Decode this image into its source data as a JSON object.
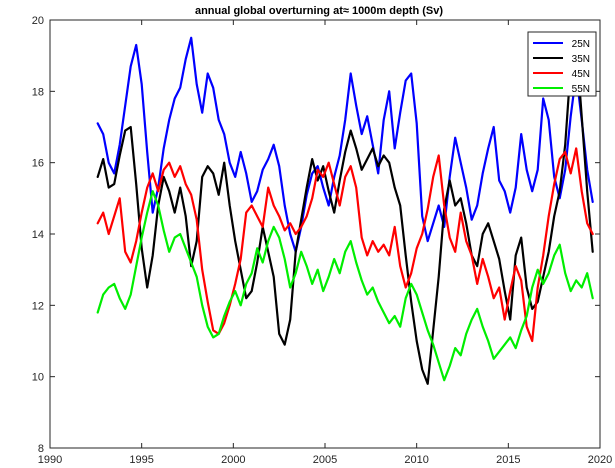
{
  "chart_data": {
    "type": "line",
    "title": "annual global overturning at≈ 1000m depth (Sv)",
    "xlabel": "",
    "ylabel": "",
    "xlim": [
      1990,
      2020
    ],
    "ylim": [
      8,
      20
    ],
    "xticks": [
      1990,
      1995,
      2000,
      2005,
      2010,
      2015,
      2020
    ],
    "yticks": [
      8,
      10,
      12,
      14,
      16,
      18,
      20
    ],
    "grid": false,
    "legend_position": "top-right",
    "series": [
      {
        "name": "25N",
        "color": "#0000ff",
        "x": [
          1992.6,
          1992.9,
          1993.2,
          1993.5,
          1993.8,
          1994.1,
          1994.4,
          1994.7,
          1995.0,
          1995.3,
          1995.6,
          1995.9,
          1996.2,
          1996.5,
          1996.8,
          1997.1,
          1997.4,
          1997.7,
          1998.0,
          1998.3,
          1998.6,
          1998.9,
          1999.2,
          1999.5,
          1999.8,
          2000.1,
          2000.4,
          2000.7,
          2001.0,
          2001.3,
          2001.6,
          2001.9,
          2002.2,
          2002.5,
          2002.8,
          2003.1,
          2003.4,
          2003.7,
          2004.0,
          2004.3,
          2004.6,
          2004.9,
          2005.2,
          2005.5,
          2005.8,
          2006.1,
          2006.4,
          2006.7,
          2007.0,
          2007.3,
          2007.6,
          2007.9,
          2008.2,
          2008.5,
          2008.8,
          2009.1,
          2009.4,
          2009.7,
          2010.0,
          2010.3,
          2010.6,
          2010.9,
          2011.2,
          2011.5,
          2011.8,
          2012.1,
          2012.4,
          2012.7,
          2013.0,
          2013.3,
          2013.6,
          2013.9,
          2014.2,
          2014.5,
          2014.8,
          2015.1,
          2015.4,
          2015.7,
          2016.0,
          2016.3,
          2016.6,
          2016.9,
          2017.2,
          2017.5,
          2017.8,
          2018.1,
          2018.4,
          2018.7,
          2019.0,
          2019.3,
          2019.6
        ],
        "y": [
          17.1,
          16.8,
          16.0,
          15.7,
          16.5,
          17.6,
          18.7,
          19.3,
          18.2,
          16.3,
          14.6,
          15.3,
          16.4,
          17.2,
          17.8,
          18.1,
          18.9,
          19.5,
          18.2,
          17.4,
          18.5,
          18.1,
          17.2,
          16.8,
          16.0,
          15.6,
          16.3,
          15.7,
          14.9,
          15.2,
          15.8,
          16.1,
          16.5,
          15.9,
          14.8,
          14.0,
          13.5,
          14.2,
          15.1,
          15.7,
          15.9,
          15.3,
          14.8,
          15.6,
          16.2,
          17.2,
          18.5,
          17.6,
          16.8,
          17.3,
          16.5,
          15.7,
          17.2,
          18.0,
          16.4,
          17.4,
          18.3,
          18.5,
          17.1,
          14.5,
          13.8,
          14.3,
          14.8,
          14.2,
          15.6,
          16.7,
          16.0,
          15.3,
          14.4,
          14.8,
          15.7,
          16.4,
          17.0,
          15.5,
          15.2,
          14.6,
          15.3,
          16.8,
          15.8,
          15.2,
          15.8,
          17.8,
          17.2,
          15.6,
          15.0,
          15.8,
          17.3,
          18.5,
          17.2,
          15.8,
          14.9
        ]
      },
      {
        "name": "35N",
        "color": "#000000",
        "x": [
          1992.6,
          1992.9,
          1993.2,
          1993.5,
          1993.8,
          1994.1,
          1994.4,
          1994.7,
          1995.0,
          1995.3,
          1995.6,
          1995.9,
          1996.2,
          1996.5,
          1996.8,
          1997.1,
          1997.4,
          1997.7,
          1998.0,
          1998.3,
          1998.6,
          1998.9,
          1999.2,
          1999.5,
          1999.8,
          2000.1,
          2000.4,
          2000.7,
          2001.0,
          2001.3,
          2001.6,
          2001.9,
          2002.2,
          2002.5,
          2002.8,
          2003.1,
          2003.4,
          2003.7,
          2004.0,
          2004.3,
          2004.6,
          2004.9,
          2005.2,
          2005.5,
          2005.8,
          2006.1,
          2006.4,
          2006.7,
          2007.0,
          2007.3,
          2007.6,
          2007.9,
          2008.2,
          2008.5,
          2008.8,
          2009.1,
          2009.4,
          2009.7,
          2010.0,
          2010.3,
          2010.6,
          2010.9,
          2011.2,
          2011.5,
          2011.8,
          2012.1,
          2012.4,
          2012.7,
          2013.0,
          2013.3,
          2013.6,
          2013.9,
          2014.2,
          2014.5,
          2014.8,
          2015.1,
          2015.4,
          2015.7,
          2016.0,
          2016.3,
          2016.6,
          2016.9,
          2017.2,
          2017.5,
          2017.8,
          2018.1,
          2018.4,
          2018.7,
          2019.0,
          2019.3,
          2019.6
        ],
        "y": [
          15.6,
          16.1,
          15.3,
          15.4,
          16.2,
          16.9,
          17.0,
          15.4,
          13.6,
          12.5,
          13.4,
          14.8,
          15.6,
          15.2,
          14.6,
          15.3,
          14.5,
          13.1,
          13.8,
          15.6,
          15.9,
          15.7,
          15.1,
          16.0,
          14.8,
          13.8,
          13.0,
          12.2,
          12.4,
          13.2,
          14.2,
          13.5,
          12.8,
          11.2,
          10.9,
          11.6,
          13.5,
          14.4,
          15.3,
          16.1,
          15.5,
          15.9,
          15.2,
          14.6,
          15.5,
          16.3,
          16.9,
          16.4,
          15.8,
          16.1,
          16.4,
          15.9,
          16.2,
          16.0,
          15.3,
          14.8,
          13.4,
          12.1,
          11.0,
          10.2,
          9.8,
          11.3,
          12.8,
          14.7,
          15.5,
          14.8,
          15.0,
          14.3,
          13.4,
          13.1,
          14.0,
          14.3,
          13.8,
          13.3,
          12.4,
          11.6,
          13.4,
          13.9,
          12.5,
          11.9,
          12.1,
          12.8,
          13.5,
          14.5,
          15.2,
          16.5,
          18.7,
          19.4,
          17.3,
          15.2,
          13.5
        ]
      },
      {
        "name": "45N",
        "color": "#ff0000",
        "x": [
          1992.6,
          1992.9,
          1993.2,
          1993.5,
          1993.8,
          1994.1,
          1994.4,
          1994.7,
          1995.0,
          1995.3,
          1995.6,
          1995.9,
          1996.2,
          1996.5,
          1996.8,
          1997.1,
          1997.4,
          1997.7,
          1998.0,
          1998.3,
          1998.6,
          1998.9,
          1999.2,
          1999.5,
          1999.8,
          2000.1,
          2000.4,
          2000.7,
          2001.0,
          2001.3,
          2001.6,
          2001.9,
          2002.2,
          2002.5,
          2002.8,
          2003.1,
          2003.4,
          2003.7,
          2004.0,
          2004.3,
          2004.6,
          2004.9,
          2005.2,
          2005.5,
          2005.8,
          2006.1,
          2006.4,
          2006.7,
          2007.0,
          2007.3,
          2007.6,
          2007.9,
          2008.2,
          2008.5,
          2008.8,
          2009.1,
          2009.4,
          2009.7,
          2010.0,
          2010.3,
          2010.6,
          2010.9,
          2011.2,
          2011.5,
          2011.8,
          2012.1,
          2012.4,
          2012.7,
          2013.0,
          2013.3,
          2013.6,
          2013.9,
          2014.2,
          2014.5,
          2014.8,
          2015.1,
          2015.4,
          2015.7,
          2016.0,
          2016.3,
          2016.6,
          2016.9,
          2017.2,
          2017.5,
          2017.8,
          2018.1,
          2018.4,
          2018.7,
          2019.0,
          2019.3,
          2019.6
        ],
        "y": [
          14.3,
          14.6,
          14.0,
          14.5,
          15.0,
          13.5,
          13.2,
          13.8,
          14.6,
          15.3,
          15.7,
          15.2,
          15.8,
          16.0,
          15.6,
          15.9,
          15.4,
          15.1,
          14.4,
          13.0,
          12.1,
          11.3,
          11.2,
          11.5,
          12.0,
          12.6,
          13.3,
          14.6,
          14.8,
          14.5,
          14.2,
          15.3,
          14.8,
          14.5,
          14.1,
          14.3,
          14.0,
          14.2,
          14.5,
          15.0,
          15.8,
          15.6,
          16.0,
          15.4,
          14.8,
          15.6,
          15.9,
          15.3,
          13.9,
          13.4,
          13.8,
          13.5,
          13.7,
          13.4,
          14.2,
          13.1,
          12.5,
          12.9,
          13.6,
          14.0,
          14.7,
          15.6,
          16.2,
          14.8,
          13.9,
          13.5,
          14.6,
          13.8,
          13.4,
          12.6,
          13.3,
          12.8,
          12.2,
          12.5,
          11.6,
          12.4,
          13.1,
          12.7,
          11.4,
          11.0,
          12.5,
          13.4,
          14.5,
          15.4,
          16.1,
          16.3,
          15.7,
          16.4,
          15.2,
          14.3,
          14.0
        ]
      },
      {
        "name": "55N",
        "color": "#00ee00",
        "x": [
          1992.6,
          1992.9,
          1993.2,
          1993.5,
          1993.8,
          1994.1,
          1994.4,
          1994.7,
          1995.0,
          1995.3,
          1995.6,
          1995.9,
          1996.2,
          1996.5,
          1996.8,
          1997.1,
          1997.4,
          1997.7,
          1998.0,
          1998.3,
          1998.6,
          1998.9,
          1999.2,
          1999.5,
          1999.8,
          2000.1,
          2000.4,
          2000.7,
          2001.0,
          2001.3,
          2001.6,
          2001.9,
          2002.2,
          2002.5,
          2002.8,
          2003.1,
          2003.4,
          2003.7,
          2004.0,
          2004.3,
          2004.6,
          2004.9,
          2005.2,
          2005.5,
          2005.8,
          2006.1,
          2006.4,
          2006.7,
          2007.0,
          2007.3,
          2007.6,
          2007.9,
          2008.2,
          2008.5,
          2008.8,
          2009.1,
          2009.4,
          2009.7,
          2010.0,
          2010.3,
          2010.6,
          2010.9,
          2011.2,
          2011.5,
          2011.8,
          2012.1,
          2012.4,
          2012.7,
          2013.0,
          2013.3,
          2013.6,
          2013.9,
          2014.2,
          2014.5,
          2014.8,
          2015.1,
          2015.4,
          2015.7,
          2016.0,
          2016.3,
          2016.6,
          2016.9,
          2017.2,
          2017.5,
          2017.8,
          2018.1,
          2018.4,
          2018.7,
          2019.0,
          2019.3,
          2019.6
        ],
        "y": [
          11.8,
          12.3,
          12.5,
          12.6,
          12.2,
          11.9,
          12.3,
          13.1,
          13.9,
          14.6,
          15.2,
          14.8,
          14.1,
          13.5,
          13.9,
          14.0,
          13.6,
          13.2,
          12.8,
          12.0,
          11.4,
          11.1,
          11.2,
          11.7,
          12.1,
          12.4,
          12.0,
          12.6,
          12.9,
          13.6,
          13.2,
          13.8,
          14.2,
          13.9,
          13.3,
          12.5,
          12.9,
          13.5,
          13.1,
          12.6,
          13.0,
          12.4,
          12.8,
          13.3,
          12.9,
          13.5,
          13.8,
          13.2,
          12.7,
          12.3,
          12.5,
          12.1,
          11.8,
          11.5,
          11.7,
          11.4,
          12.2,
          12.6,
          12.3,
          11.8,
          11.3,
          10.9,
          10.4,
          9.9,
          10.3,
          10.8,
          10.6,
          11.2,
          11.6,
          11.9,
          11.4,
          11.0,
          10.5,
          10.7,
          10.9,
          11.1,
          10.8,
          11.3,
          11.7,
          12.5,
          13.0,
          12.6,
          12.9,
          13.4,
          13.7,
          12.9,
          12.4,
          12.7,
          12.5,
          12.9,
          12.2
        ]
      }
    ]
  }
}
